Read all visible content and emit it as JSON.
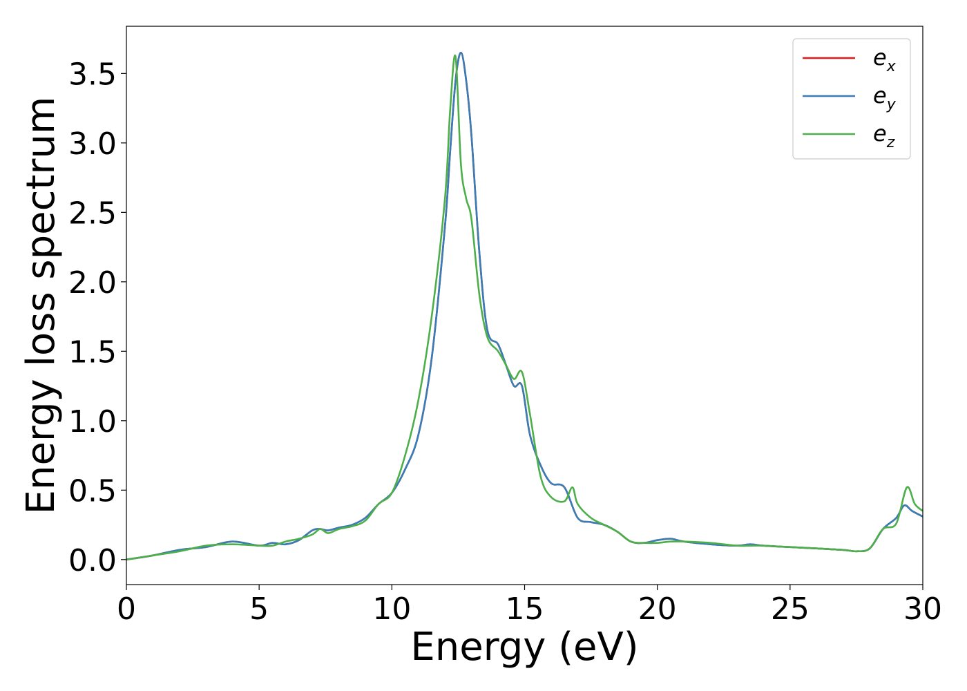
{
  "chart_data": {
    "type": "line",
    "xlabel": "Energy (eV)",
    "ylabel": "Energy loss spectrum",
    "xlim": [
      0,
      30
    ],
    "ylim": [
      -0.18,
      3.84
    ],
    "xticks": [
      0,
      5,
      10,
      15,
      20,
      25,
      30
    ],
    "xtick_labels": [
      "0",
      "5",
      "10",
      "15",
      "20",
      "25",
      "30"
    ],
    "yticks": [
      0.0,
      0.5,
      1.0,
      1.5,
      2.0,
      2.5,
      3.0,
      3.5
    ],
    "ytick_labels": [
      "0.0",
      "0.5",
      "1.0",
      "1.5",
      "2.0",
      "2.5",
      "3.0",
      "3.5"
    ],
    "grid": false,
    "legend_position": "top-right",
    "series": [
      {
        "name": "e",
        "subscript": "x",
        "color": "#e41a1c",
        "x": [
          0,
          1,
          2,
          3,
          4,
          5,
          5.5,
          6,
          6.5,
          7,
          7.3,
          7.6,
          8,
          8.5,
          9,
          9.5,
          10,
          10.5,
          11,
          11.5,
          12,
          12.2,
          12.4,
          12.6,
          12.8,
          13,
          13.3,
          13.6,
          14,
          14.3,
          14.6,
          14.9,
          15.2,
          15.6,
          16,
          16.5,
          17,
          17.5,
          18,
          18.5,
          19,
          19.5,
          20,
          20.5,
          21,
          22,
          23,
          23.5,
          24,
          25,
          26,
          27,
          27.5,
          28,
          28.5,
          29,
          29.3,
          29.6,
          30
        ],
        "y": [
          0,
          0.03,
          0.07,
          0.09,
          0.13,
          0.1,
          0.12,
          0.11,
          0.14,
          0.21,
          0.22,
          0.21,
          0.23,
          0.25,
          0.3,
          0.4,
          0.48,
          0.65,
          0.9,
          1.45,
          2.4,
          2.95,
          3.45,
          3.65,
          3.45,
          3.05,
          2.2,
          1.65,
          1.55,
          1.4,
          1.25,
          1.25,
          0.9,
          0.68,
          0.55,
          0.52,
          0.3,
          0.27,
          0.25,
          0.2,
          0.13,
          0.12,
          0.14,
          0.15,
          0.13,
          0.11,
          0.1,
          0.11,
          0.1,
          0.09,
          0.08,
          0.07,
          0.06,
          0.08,
          0.22,
          0.3,
          0.39,
          0.35,
          0.31
        ]
      },
      {
        "name": "e",
        "subscript": "y",
        "color": "#377eb8",
        "x": [
          0,
          1,
          2,
          3,
          4,
          5,
          5.5,
          6,
          6.5,
          7,
          7.3,
          7.6,
          8,
          8.5,
          9,
          9.5,
          10,
          10.5,
          11,
          11.5,
          12,
          12.2,
          12.4,
          12.6,
          12.8,
          13,
          13.3,
          13.6,
          14,
          14.3,
          14.6,
          14.9,
          15.2,
          15.6,
          16,
          16.5,
          17,
          17.5,
          18,
          18.5,
          19,
          19.5,
          20,
          20.5,
          21,
          22,
          23,
          23.5,
          24,
          25,
          26,
          27,
          27.5,
          28,
          28.5,
          29,
          29.3,
          29.6,
          30
        ],
        "y": [
          0,
          0.03,
          0.07,
          0.09,
          0.13,
          0.1,
          0.12,
          0.11,
          0.14,
          0.21,
          0.22,
          0.21,
          0.23,
          0.25,
          0.3,
          0.4,
          0.48,
          0.65,
          0.9,
          1.45,
          2.4,
          2.95,
          3.45,
          3.65,
          3.45,
          3.05,
          2.2,
          1.65,
          1.55,
          1.4,
          1.25,
          1.25,
          0.9,
          0.68,
          0.55,
          0.52,
          0.3,
          0.27,
          0.25,
          0.2,
          0.13,
          0.12,
          0.14,
          0.15,
          0.13,
          0.11,
          0.1,
          0.11,
          0.1,
          0.09,
          0.08,
          0.07,
          0.06,
          0.08,
          0.22,
          0.3,
          0.39,
          0.35,
          0.31
        ]
      },
      {
        "name": "e",
        "subscript": "z",
        "color": "#4daf4a",
        "x": [
          0,
          1,
          2,
          3,
          4,
          5,
          5.5,
          6,
          6.5,
          7,
          7.3,
          7.6,
          8,
          8.5,
          9,
          9.5,
          10,
          10.5,
          11,
          11.5,
          12,
          12.2,
          12.4,
          12.6,
          12.8,
          13,
          13.3,
          13.6,
          14,
          14.3,
          14.6,
          14.9,
          15.2,
          15.6,
          16,
          16.5,
          16.8,
          17,
          17.5,
          18,
          18.5,
          19,
          19.5,
          20,
          20.5,
          21,
          22,
          23,
          23.5,
          24,
          25,
          26,
          27,
          27.5,
          28,
          28.5,
          29,
          29.4,
          29.7,
          30
        ],
        "y": [
          0,
          0.03,
          0.06,
          0.1,
          0.11,
          0.1,
          0.1,
          0.13,
          0.15,
          0.18,
          0.22,
          0.19,
          0.22,
          0.24,
          0.28,
          0.4,
          0.48,
          0.75,
          1.15,
          1.75,
          2.6,
          3.25,
          3.62,
          2.85,
          2.6,
          2.45,
          1.9,
          1.6,
          1.5,
          1.4,
          1.3,
          1.35,
          1.05,
          0.6,
          0.45,
          0.42,
          0.52,
          0.4,
          0.3,
          0.25,
          0.2,
          0.13,
          0.12,
          0.12,
          0.13,
          0.13,
          0.12,
          0.1,
          0.1,
          0.1,
          0.09,
          0.08,
          0.07,
          0.06,
          0.08,
          0.22,
          0.26,
          0.52,
          0.4,
          0.35
        ]
      }
    ]
  }
}
